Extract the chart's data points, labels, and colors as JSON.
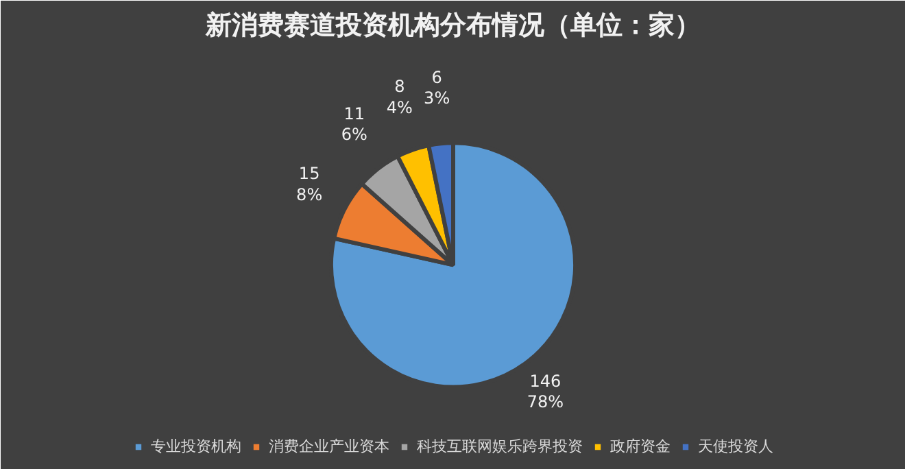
{
  "chart_data": {
    "type": "pie",
    "title": "新消费赛道投资机构分布情况（单位：家）",
    "categories": [
      "专业投资机构",
      "消费企业产业资本",
      "科技互联网娱乐跨界投资",
      "政府资金",
      "天使投资人"
    ],
    "values": [
      146,
      15,
      11,
      8,
      6
    ],
    "colors": [
      "#5b9bd5",
      "#ed7d31",
      "#a5a5a5",
      "#ffc000",
      "#4472c4"
    ],
    "value_labels": [
      "146\n78%",
      "15\n8%",
      "11\n6%",
      "8\n4%",
      "6\n3%"
    ],
    "legend": "bottom"
  }
}
